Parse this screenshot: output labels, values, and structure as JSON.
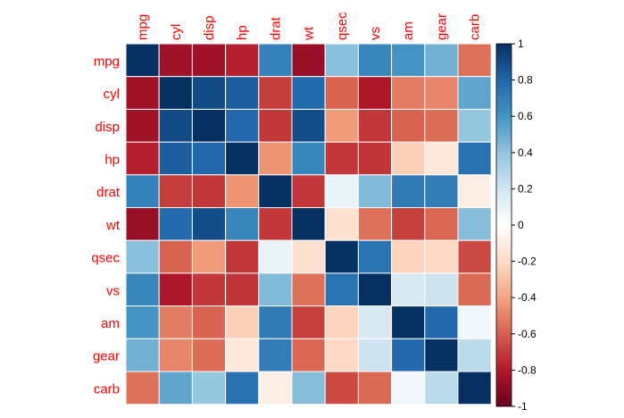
{
  "chart_data": {
    "type": "heatmap",
    "title": "",
    "xlabel": "",
    "ylabel": "",
    "variables": [
      "mpg",
      "cyl",
      "disp",
      "hp",
      "drat",
      "wt",
      "qsec",
      "vs",
      "am",
      "gear",
      "carb"
    ],
    "matrix": [
      [
        1.0,
        -0.85,
        -0.85,
        -0.78,
        0.68,
        -0.87,
        0.42,
        0.66,
        0.6,
        0.48,
        -0.55
      ],
      [
        -0.85,
        1.0,
        0.9,
        0.83,
        -0.7,
        0.78,
        -0.59,
        -0.81,
        -0.52,
        -0.49,
        0.53
      ],
      [
        -0.85,
        0.9,
        1.0,
        0.79,
        -0.71,
        0.89,
        -0.43,
        -0.71,
        -0.59,
        -0.56,
        0.39
      ],
      [
        -0.78,
        0.83,
        0.79,
        1.0,
        -0.45,
        0.66,
        -0.71,
        -0.72,
        -0.24,
        -0.13,
        0.75
      ],
      [
        0.68,
        -0.7,
        -0.71,
        -0.45,
        1.0,
        -0.71,
        0.09,
        0.44,
        0.71,
        0.7,
        -0.09
      ],
      [
        -0.87,
        0.78,
        0.89,
        0.66,
        -0.71,
        1.0,
        -0.17,
        -0.55,
        -0.69,
        -0.58,
        0.43
      ],
      [
        0.42,
        -0.59,
        -0.43,
        -0.71,
        0.09,
        -0.17,
        1.0,
        0.74,
        -0.23,
        -0.21,
        -0.66
      ],
      [
        0.66,
        -0.81,
        -0.71,
        -0.72,
        0.44,
        -0.55,
        0.74,
        1.0,
        0.17,
        0.21,
        -0.57
      ],
      [
        0.6,
        -0.52,
        -0.59,
        -0.24,
        0.71,
        -0.69,
        -0.23,
        0.17,
        1.0,
        0.79,
        0.06
      ],
      [
        0.48,
        -0.49,
        -0.56,
        -0.13,
        0.7,
        -0.58,
        -0.21,
        0.21,
        0.79,
        1.0,
        0.27
      ],
      [
        -0.55,
        0.53,
        0.39,
        0.75,
        -0.09,
        0.43,
        -0.66,
        -0.57,
        0.06,
        0.27,
        1.0
      ]
    ],
    "color_scale": {
      "range": [
        -1,
        1
      ],
      "ticks": [
        "1",
        "0.8",
        "0.6",
        "0.4",
        "0.2",
        "0",
        "-0.2",
        "-0.4",
        "-0.6",
        "-0.8",
        "-1"
      ],
      "stops": [
        [
          -1.0,
          "#67001F"
        ],
        [
          -0.8,
          "#B2182B"
        ],
        [
          -0.6,
          "#D6604D"
        ],
        [
          -0.4,
          "#F4A582"
        ],
        [
          -0.2,
          "#FDDBC7"
        ],
        [
          0.0,
          "#FFFFFF"
        ],
        [
          0.2,
          "#D1E5F0"
        ],
        [
          0.4,
          "#92C5DE"
        ],
        [
          0.6,
          "#4393C3"
        ],
        [
          0.8,
          "#2166AC"
        ],
        [
          1.0,
          "#053061"
        ]
      ]
    },
    "label_color": "#FF0000",
    "legend_position": "right"
  }
}
